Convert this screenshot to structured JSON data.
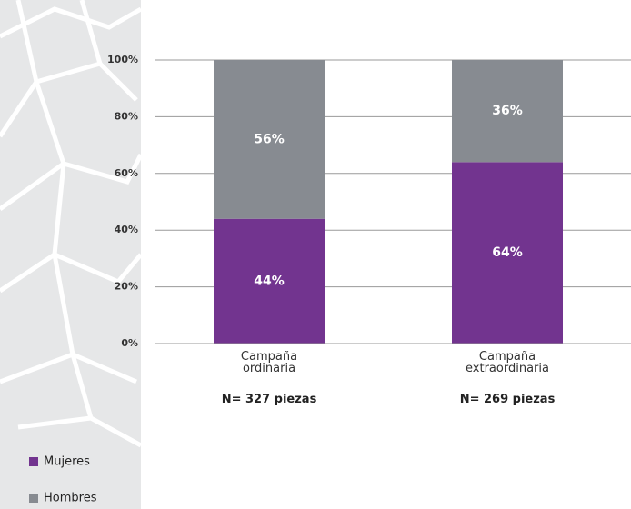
{
  "chart_data": {
    "type": "stacked_bar",
    "categories": [
      "Campaña ordinaria",
      "Campaña extraordinaria"
    ],
    "annotations": [
      "N= 327  piezas",
      "N= 269  piezas"
    ],
    "series": [
      {
        "name": "Mujeres",
        "color": "#72348f",
        "values": [
          44,
          64
        ],
        "value_labels": [
          "44%",
          "64%"
        ]
      },
      {
        "name": "Hombres",
        "color": "#878b91",
        "values": [
          56,
          36
        ],
        "value_labels": [
          "56%",
          "36%"
        ]
      }
    ],
    "ylim": [
      0,
      100
    ],
    "yticks": [
      {
        "value": 0,
        "label": "0%"
      },
      {
        "value": 20,
        "label": "20%"
      },
      {
        "value": 40,
        "label": "40%"
      },
      {
        "value": 60,
        "label": "60%"
      },
      {
        "value": 80,
        "label": "80%"
      },
      {
        "value": 100,
        "label": "100%"
      }
    ],
    "grid": true
  }
}
